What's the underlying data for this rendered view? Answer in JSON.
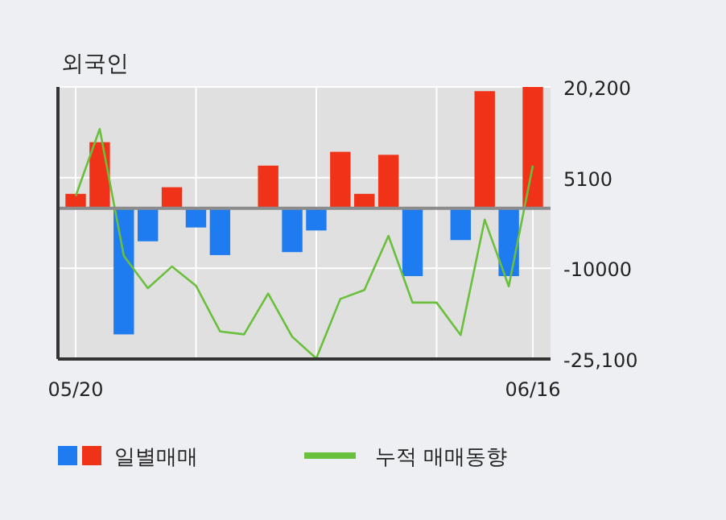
{
  "chart_data": {
    "type": "bar",
    "title": "외국인",
    "categories": [
      "05/20",
      null,
      null,
      null,
      null,
      null,
      null,
      null,
      null,
      null,
      null,
      null,
      null,
      null,
      null,
      null,
      null,
      null,
      null,
      "06/16"
    ],
    "series": [
      {
        "name": "일별매매",
        "colors": [
          "#f03218",
          "#f03218",
          "#1e7cf0",
          "#1e7cf0",
          "#f03218",
          "#1e7cf0",
          "#1e7cf0",
          "#f03218",
          "#f03218",
          "#1e7cf0",
          "#1e7cf0",
          "#f03218",
          "#f03218",
          "#f03218",
          "#1e7cf0",
          "#1e7cf0",
          "#1e7cf0",
          "#f03218",
          "#1e7cf0",
          "#f03218"
        ],
        "values": [
          2400,
          11000,
          -21000,
          -5500,
          3500,
          -3200,
          -7800,
          0,
          7100,
          -7300,
          -3700,
          9400,
          2400,
          8900,
          -11300,
          0,
          -5300,
          19500,
          -11300,
          20200
        ]
      },
      {
        "name": "누적 매매동향",
        "type": "line",
        "color": "#6abf3c",
        "values": [
          2000,
          13200,
          -7900,
          -13300,
          -9700,
          -12900,
          -20500,
          -21000,
          -14200,
          -21400,
          -25000,
          -15100,
          -13600,
          -4600,
          -15700,
          -15700,
          -21100,
          -1900,
          -13000,
          7100
        ]
      }
    ],
    "ylim": [
      -25100,
      20200
    ],
    "yticks": [
      {
        "value": 20200,
        "label": "20,200"
      },
      5100,
      -10000,
      {
        "value": -25100,
        "label": "-25,100"
      }
    ],
    "grid": true,
    "legend": "bottom"
  }
}
